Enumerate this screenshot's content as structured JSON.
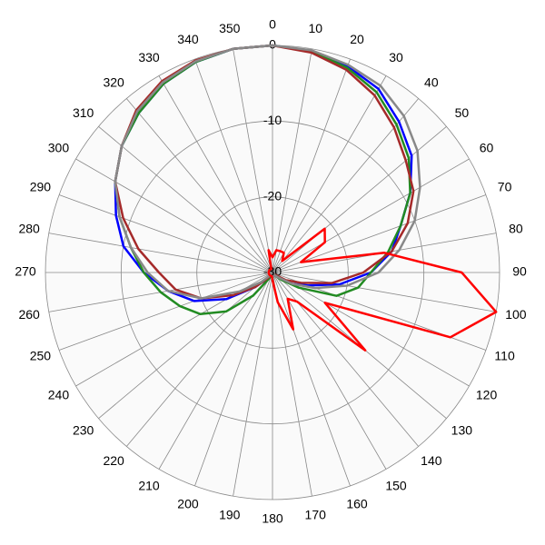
{
  "chart_data": {
    "type": "polar",
    "x": [
      0,
      10,
      20,
      30,
      40,
      50,
      60,
      70,
      80,
      90,
      100,
      110,
      120,
      130,
      140,
      150,
      160,
      170,
      180,
      190,
      200,
      210,
      220,
      230,
      240,
      250,
      260,
      270,
      280,
      290,
      300,
      310,
      320,
      330,
      340,
      350
    ],
    "xticks": [
      0,
      10,
      20,
      30,
      40,
      50,
      60,
      70,
      80,
      90,
      100,
      110,
      120,
      130,
      140,
      150,
      160,
      170,
      180,
      190,
      200,
      210,
      220,
      230,
      240,
      250,
      260,
      270,
      280,
      290,
      300,
      310,
      320,
      330,
      340,
      350
    ],
    "ylim": [
      -30,
      0
    ],
    "yticks": [
      -30,
      -20,
      -10,
      0
    ],
    "grid": true,
    "series": [
      {
        "color": "#0000ff",
        "values": [
          0,
          -0.3,
          -1,
          -2,
          -4,
          -6,
          -9,
          -12,
          -14,
          -17,
          -21,
          -25,
          -27,
          -29,
          -29.5,
          -29.5,
          -29.5,
          -29.5,
          -29.5,
          -29.5,
          -29.5,
          -29.5,
          -29,
          -27,
          -23,
          -19,
          -16,
          -13,
          -10,
          -8,
          -6,
          -4,
          -2.5,
          -1.2,
          -0.4,
          0
        ]
      },
      {
        "color": "#228b22",
        "values": [
          0,
          -0.3,
          -1.2,
          -2.5,
          -4.5,
          -6.5,
          -9,
          -12,
          -14.5,
          -17,
          -18.5,
          -21,
          -26,
          -28.5,
          -29.5,
          -29.5,
          -29.5,
          -29.5,
          -29.5,
          -29.5,
          -29.5,
          -29,
          -26,
          -22,
          -19,
          -17,
          -15,
          -13,
          -11,
          -8.5,
          -6,
          -4,
          -2.5,
          -1.2,
          -0.4,
          0
        ]
      },
      {
        "color": "#a52a2a",
        "values": [
          0,
          -0.5,
          -1.5,
          -3,
          -5,
          -7,
          -8.5,
          -11,
          -14,
          -18,
          -22,
          -26,
          -28,
          -29.5,
          -29.5,
          -29.5,
          -29.5,
          -29.5,
          -29.5,
          -29.5,
          -29.5,
          -29.5,
          -29,
          -27,
          -24,
          -20,
          -17,
          -15,
          -12,
          -9,
          -6,
          -4,
          -2,
          -0.8,
          -0.2,
          0
        ]
      },
      {
        "color": "#888888",
        "values": [
          0,
          -0.2,
          -0.8,
          -1.5,
          -3,
          -5,
          -7.5,
          -10,
          -13,
          -16,
          -20,
          -24,
          -27,
          -29,
          -29.5,
          -29.5,
          -29.5,
          -29.5,
          -29.5,
          -29.5,
          -29.5,
          -29.5,
          -29.5,
          -28,
          -25,
          -20,
          -16,
          -13.5,
          -11,
          -8.5,
          -6,
          -4,
          -2.2,
          -1,
          -0.3,
          0
        ]
      },
      {
        "color": "#ff0000",
        "values": [
          -28,
          -27,
          -27,
          -27,
          -28,
          -21,
          -22,
          -26,
          -15,
          -5,
          0,
          -5,
          -22,
          -14,
          -25,
          -26,
          -22,
          -26,
          -29,
          -29.5,
          -29.5,
          -29.5,
          -29.5,
          -29.5,
          -29.5,
          -29.5,
          -29.5,
          -29.5,
          -29.5,
          -29.5,
          -29.5,
          -29.5,
          -29.5,
          -29.5,
          -29.5,
          -27
        ]
      }
    ]
  }
}
